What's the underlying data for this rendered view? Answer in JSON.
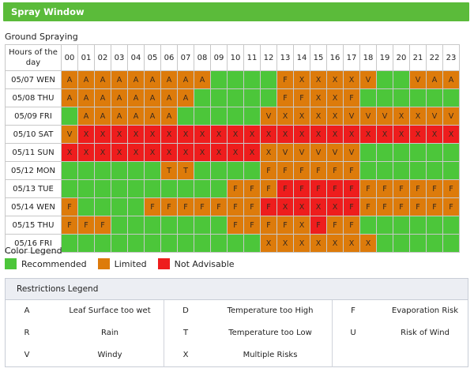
{
  "header": {
    "title": "Spray Window"
  },
  "section_title": "Ground Spraying",
  "grid": {
    "row_header": "Hours of the day",
    "hours": [
      "00",
      "01",
      "02",
      "03",
      "04",
      "05",
      "06",
      "07",
      "08",
      "09",
      "10",
      "11",
      "12",
      "13",
      "14",
      "15",
      "16",
      "17",
      "18",
      "19",
      "20",
      "21",
      "22",
      "23"
    ],
    "rows": [
      {
        "day": "05/07 WEN",
        "colors": [
          "O",
          "O",
          "O",
          "O",
          "O",
          "O",
          "O",
          "O",
          "O",
          "G",
          "G",
          "G",
          "G",
          "O",
          "O",
          "O",
          "O",
          "O",
          "O",
          "G",
          "G",
          "O",
          "O",
          "O"
        ],
        "labels": [
          "A",
          "A",
          "A",
          "A",
          "A",
          "A",
          "A",
          "A",
          "A",
          "",
          "",
          "",
          "",
          "F",
          "X",
          "X",
          "X",
          "X",
          "V",
          "",
          "",
          "V",
          "A",
          "A"
        ]
      },
      {
        "day": "05/08 THU",
        "colors": [
          "O",
          "O",
          "O",
          "O",
          "O",
          "O",
          "O",
          "O",
          "G",
          "G",
          "G",
          "G",
          "G",
          "O",
          "O",
          "O",
          "O",
          "O",
          "G",
          "G",
          "G",
          "G",
          "G",
          "G"
        ],
        "labels": [
          "A",
          "A",
          "A",
          "A",
          "A",
          "A",
          "A",
          "A",
          "",
          "",
          "",
          "",
          "",
          "F",
          "F",
          "X",
          "X",
          "F",
          "",
          "",
          "",
          "",
          "",
          ""
        ]
      },
      {
        "day": "05/09 FRI",
        "colors": [
          "G",
          "O",
          "O",
          "O",
          "O",
          "O",
          "O",
          "G",
          "G",
          "G",
          "G",
          "G",
          "O",
          "O",
          "O",
          "O",
          "O",
          "O",
          "O",
          "O",
          "O",
          "O",
          "O",
          "O"
        ],
        "labels": [
          "",
          "A",
          "A",
          "A",
          "A",
          "A",
          "A",
          "",
          "",
          "",
          "",
          "",
          "V",
          "X",
          "X",
          "X",
          "X",
          "V",
          "V",
          "V",
          "X",
          "X",
          "V",
          "V"
        ]
      },
      {
        "day": "05/10 SAT",
        "colors": [
          "O",
          "R",
          "R",
          "R",
          "R",
          "R",
          "R",
          "R",
          "R",
          "R",
          "R",
          "R",
          "R",
          "R",
          "R",
          "R",
          "R",
          "R",
          "R",
          "R",
          "R",
          "R",
          "R",
          "R"
        ],
        "labels": [
          "V",
          "X",
          "X",
          "X",
          "X",
          "X",
          "X",
          "X",
          "X",
          "X",
          "X",
          "X",
          "X",
          "X",
          "X",
          "X",
          "X",
          "X",
          "X",
          "X",
          "X",
          "X",
          "X",
          "X"
        ]
      },
      {
        "day": "05/11 SUN",
        "colors": [
          "R",
          "R",
          "R",
          "R",
          "R",
          "R",
          "R",
          "R",
          "R",
          "R",
          "R",
          "R",
          "O",
          "O",
          "O",
          "O",
          "O",
          "O",
          "G",
          "G",
          "G",
          "G",
          "G",
          "G"
        ],
        "labels": [
          "X",
          "X",
          "X",
          "X",
          "X",
          "X",
          "X",
          "X",
          "X",
          "X",
          "X",
          "X",
          "X",
          "V",
          "V",
          "V",
          "V",
          "V",
          "",
          "",
          "",
          "",
          "",
          ""
        ]
      },
      {
        "day": "05/12 MON",
        "colors": [
          "G",
          "G",
          "G",
          "G",
          "G",
          "G",
          "O",
          "O",
          "G",
          "G",
          "G",
          "G",
          "O",
          "O",
          "O",
          "O",
          "O",
          "O",
          "G",
          "G",
          "G",
          "G",
          "G",
          "G"
        ],
        "labels": [
          "",
          "",
          "",
          "",
          "",
          "",
          "T",
          "T",
          "",
          "",
          "",
          "",
          "F",
          "F",
          "F",
          "F",
          "F",
          "F",
          "",
          "",
          "",
          "",
          "",
          ""
        ]
      },
      {
        "day": "05/13 TUE",
        "colors": [
          "G",
          "G",
          "G",
          "G",
          "G",
          "G",
          "G",
          "G",
          "G",
          "G",
          "O",
          "O",
          "O",
          "R",
          "R",
          "R",
          "R",
          "R",
          "O",
          "O",
          "O",
          "O",
          "O",
          "O"
        ],
        "labels": [
          "",
          "",
          "",
          "",
          "",
          "",
          "",
          "",
          "",
          "",
          "F",
          "F",
          "F",
          "F",
          "F",
          "F",
          "F",
          "F",
          "F",
          "F",
          "F",
          "F",
          "F",
          "F"
        ]
      },
      {
        "day": "05/14 WEN",
        "colors": [
          "O",
          "G",
          "G",
          "G",
          "G",
          "O",
          "O",
          "O",
          "O",
          "O",
          "O",
          "O",
          "R",
          "R",
          "R",
          "R",
          "R",
          "R",
          "O",
          "O",
          "O",
          "O",
          "O",
          "O"
        ],
        "labels": [
          "F",
          "",
          "",
          "",
          "",
          "F",
          "F",
          "F",
          "F",
          "F",
          "F",
          "F",
          "F",
          "X",
          "X",
          "X",
          "X",
          "F",
          "F",
          "F",
          "F",
          "F",
          "F",
          "F"
        ]
      },
      {
        "day": "05/15 THU",
        "colors": [
          "O",
          "O",
          "O",
          "G",
          "G",
          "G",
          "G",
          "G",
          "G",
          "G",
          "O",
          "O",
          "O",
          "O",
          "O",
          "R",
          "O",
          "O",
          "G",
          "G",
          "G",
          "G",
          "G",
          "G"
        ],
        "labels": [
          "F",
          "F",
          "F",
          "",
          "",
          "",
          "",
          "",
          "",
          "",
          "F",
          "F",
          "F",
          "F",
          "X",
          "F",
          "F",
          "F",
          "",
          "",
          "",
          "",
          "",
          ""
        ]
      },
      {
        "day": "05/16 FRI",
        "colors": [
          "G",
          "G",
          "G",
          "G",
          "G",
          "G",
          "G",
          "G",
          "G",
          "G",
          "G",
          "G",
          "O",
          "O",
          "O",
          "O",
          "O",
          "O",
          "O",
          "G",
          "G",
          "G",
          "G",
          "G"
        ],
        "labels": [
          "",
          "",
          "",
          "",
          "",
          "",
          "",
          "",
          "",
          "",
          "",
          "",
          "X",
          "X",
          "X",
          "X",
          "X",
          "X",
          "X",
          "",
          "",
          "",
          "",
          ""
        ]
      }
    ]
  },
  "color_legend": {
    "title": "Color Legend",
    "items": [
      {
        "label": "Recommended",
        "color": "#4cc63a"
      },
      {
        "label": "Limited",
        "color": "#dd7b0b"
      },
      {
        "label": "Not Advisable",
        "color": "#ee1d1d"
      }
    ]
  },
  "restrictions": {
    "title": "Restrictions Legend",
    "rows": [
      [
        {
          "code": "A",
          "text": "Leaf Surface too wet"
        },
        {
          "code": "D",
          "text": "Temperature too High"
        },
        {
          "code": "F",
          "text": "Evaporation Risk"
        }
      ],
      [
        {
          "code": "R",
          "text": "Rain"
        },
        {
          "code": "T",
          "text": "Temperature too Low"
        },
        {
          "code": "U",
          "text": "Risk of Wind"
        }
      ],
      [
        {
          "code": "V",
          "text": "Windy"
        },
        {
          "code": "X",
          "text": "Multiple Risks"
        },
        {
          "code": "",
          "text": ""
        }
      ]
    ]
  }
}
